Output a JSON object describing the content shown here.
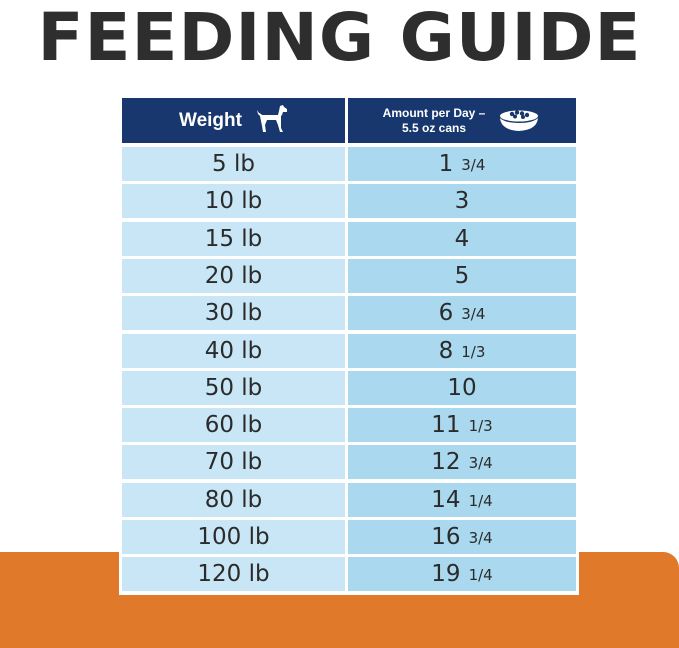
{
  "title": "FEEDING GUIDE",
  "table": {
    "header": {
      "weight_label": "Weight",
      "amount_line1": "Amount per Day –",
      "amount_line2": "5.5 oz cans",
      "weight_icon": "dog-icon",
      "amount_icon": "food-bowl-icon"
    },
    "rows": [
      {
        "weight": "5 lb",
        "amount_whole": "1",
        "amount_frac": "3/4"
      },
      {
        "weight": "10 lb",
        "amount_whole": "3",
        "amount_frac": ""
      },
      {
        "weight": "15 lb",
        "amount_whole": "4",
        "amount_frac": ""
      },
      {
        "weight": "20 lb",
        "amount_whole": "5",
        "amount_frac": ""
      },
      {
        "weight": "30 lb",
        "amount_whole": "6",
        "amount_frac": "3/4"
      },
      {
        "weight": "40 lb",
        "amount_whole": "8",
        "amount_frac": "1/3"
      },
      {
        "weight": "50 lb",
        "amount_whole": "10",
        "amount_frac": ""
      },
      {
        "weight": "60 lb",
        "amount_whole": "11",
        "amount_frac": "1/3"
      },
      {
        "weight": "70 lb",
        "amount_whole": "12",
        "amount_frac": "3/4"
      },
      {
        "weight": "80 lb",
        "amount_whole": "14",
        "amount_frac": "1/4"
      },
      {
        "weight": "100 lb",
        "amount_whole": "16",
        "amount_frac": "3/4"
      },
      {
        "weight": "120 lb",
        "amount_whole": "19",
        "amount_frac": "1/4"
      }
    ]
  },
  "colors": {
    "header_bg": "#17376e",
    "weight_cell_bg": "#c8e6f6",
    "amount_cell_bg": "#a9d8ef",
    "title_color": "#2e2e2e",
    "accent_band": "#e07a2a"
  }
}
